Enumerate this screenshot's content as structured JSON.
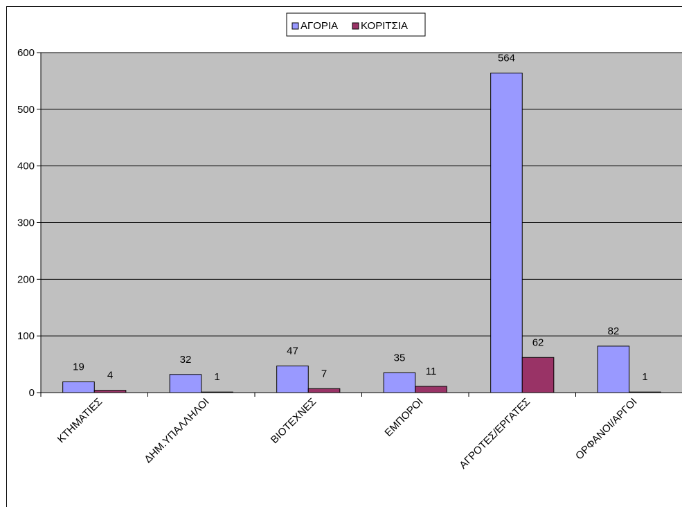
{
  "chart_data": {
    "type": "bar",
    "categories": [
      "ΚΤΗΜΑΤΙΕΣ",
      "ΔΗΜ.ΥΠΑΛΛΗΛΟΙ",
      "ΒΙΟΤΕΧΝΕΣ",
      "ΕΜΠΟΡΟΙ",
      "ΑΓΡΟΤΕΣ/ΕΡΓΑΤΕΣ",
      "ΟΡΦΑΝΟΙ/ΑΡΓΟΙ"
    ],
    "series": [
      {
        "name": "ΑΓΟΡΙΑ",
        "values": [
          19,
          32,
          47,
          35,
          564,
          82
        ],
        "color": "#9999ff"
      },
      {
        "name": "ΚΟΡΙΤΣΙΑ",
        "values": [
          4,
          1,
          7,
          11,
          62,
          1
        ],
        "color": "#993366"
      }
    ],
    "ylim": [
      0,
      600
    ],
    "yticks": [
      0,
      100,
      200,
      300,
      400,
      500,
      600
    ],
    "grid": true,
    "legend_position": "top-center",
    "plot_background": "#c0c0c0",
    "data_labels": true
  }
}
